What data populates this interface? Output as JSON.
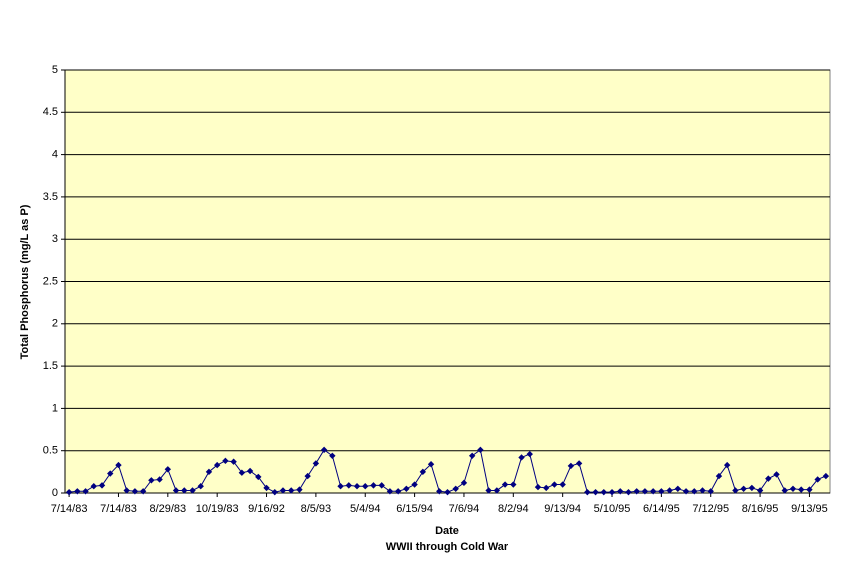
{
  "chart_data": {
    "type": "line",
    "y_label": "Total Phosphorus (mg/L as P)",
    "x_label": "Date",
    "subtitle": "WWII through Cold War",
    "color": "#000080",
    "background": "#ffffc8",
    "grid": true,
    "ylim": [
      0,
      5
    ],
    "yticks": [
      0,
      0.5,
      1,
      1.5,
      2,
      2.5,
      3,
      3.5,
      4,
      4.5,
      5
    ],
    "categories": [
      "7/14/83",
      null,
      null,
      null,
      null,
      null,
      "7/14/83",
      null,
      null,
      null,
      null,
      null,
      "8/29/83",
      null,
      null,
      null,
      null,
      null,
      "10/19/83",
      null,
      null,
      null,
      null,
      null,
      "9/16/92",
      null,
      null,
      null,
      null,
      null,
      "8/5/93",
      null,
      null,
      null,
      null,
      null,
      "5/4/94",
      null,
      null,
      null,
      null,
      null,
      "6/15/94",
      null,
      null,
      null,
      null,
      null,
      "7/6/94",
      null,
      null,
      null,
      null,
      null,
      "8/2/94",
      null,
      null,
      null,
      null,
      null,
      "9/13/94",
      null,
      null,
      null,
      null,
      null,
      "5/10/95",
      null,
      null,
      null,
      null,
      null,
      "6/14/95",
      null,
      null,
      null,
      null,
      null,
      "7/12/95",
      null,
      null,
      null,
      null,
      null,
      "8/16/95",
      null,
      null,
      null,
      null,
      null,
      "9/13/95",
      null,
      null
    ],
    "values": [
      0.01,
      0.02,
      0.02,
      0.08,
      0.09,
      0.23,
      0.33,
      0.03,
      0.02,
      0.02,
      0.15,
      0.16,
      0.28,
      0.03,
      0.03,
      0.03,
      0.08,
      0.25,
      0.33,
      0.38,
      0.37,
      0.24,
      0.26,
      0.19,
      0.06,
      0.01,
      0.03,
      0.03,
      0.04,
      0.2,
      0.35,
      0.51,
      0.44,
      0.08,
      0.09,
      0.08,
      0.08,
      0.09,
      0.09,
      0.02,
      0.02,
      0.05,
      0.1,
      0.25,
      0.34,
      0.02,
      0.01,
      0.05,
      0.12,
      0.44,
      0.51,
      0.03,
      0.03,
      0.1,
      0.1,
      0.42,
      0.46,
      0.07,
      0.06,
      0.1,
      0.1,
      0.32,
      0.35,
      0.01,
      0.01,
      0.01,
      0.01,
      0.02,
      0.01,
      0.02,
      0.02,
      0.02,
      0.02,
      0.03,
      0.05,
      0.02,
      0.02,
      0.03,
      0.02,
      0.2,
      0.33,
      0.03,
      0.05,
      0.06,
      0.03,
      0.17,
      0.22,
      0.03,
      0.05,
      0.04,
      0.04,
      0.16,
      0.2
    ]
  }
}
